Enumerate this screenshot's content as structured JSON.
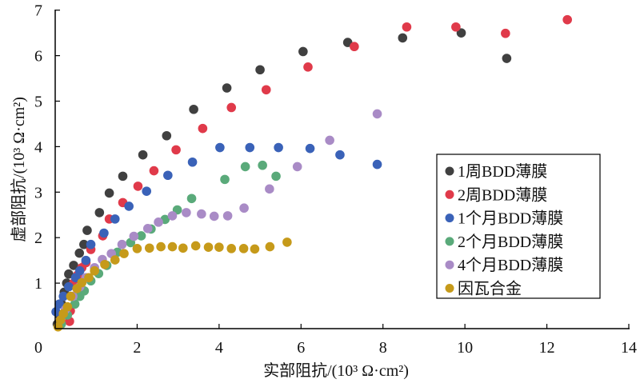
{
  "chart_data": {
    "type": "scatter",
    "title": "",
    "xlabel": "实部阻抗/(10³ Ω·cm²)",
    "ylabel": "虚部阻抗/(10³ Ω·cm²)",
    "xlim": [
      0,
      14
    ],
    "ylim": [
      0,
      7
    ],
    "xticks": [
      0,
      2,
      4,
      6,
      8,
      10,
      12,
      14
    ],
    "yticks": [
      1,
      2,
      3,
      4,
      5,
      6,
      7
    ],
    "grid": false,
    "legend_position": "right",
    "series": [
      {
        "name": "1周BDD薄膜",
        "color": "#404040",
        "x": [
          0.05,
          0.1,
          0.15,
          0.22,
          0.28,
          0.33,
          0.45,
          0.59,
          0.7,
          0.78,
          1.08,
          1.32,
          1.65,
          2.14,
          2.72,
          3.38,
          4.19,
          5.0,
          6.05,
          7.14,
          8.48,
          9.91,
          11.02
        ],
        "y": [
          0.1,
          0.3,
          0.55,
          0.8,
          1.0,
          1.2,
          1.39,
          1.66,
          1.85,
          2.16,
          2.55,
          2.98,
          3.35,
          3.82,
          4.24,
          4.82,
          5.29,
          5.69,
          6.09,
          6.29,
          6.39,
          6.5,
          5.94
        ]
      },
      {
        "name": "2周BDD薄膜",
        "color": "#e03a4a",
        "x": [
          0.35,
          0.37,
          0.45,
          0.55,
          0.65,
          0.75,
          0.87,
          1.16,
          1.32,
          1.65,
          2.02,
          2.41,
          2.95,
          3.6,
          4.3,
          5.15,
          6.17,
          7.3,
          8.58,
          9.78,
          10.99,
          12.5
        ],
        "y": [
          0.16,
          0.39,
          1.0,
          1.18,
          1.34,
          1.45,
          1.74,
          2.04,
          2.41,
          2.77,
          3.13,
          3.47,
          3.93,
          4.4,
          4.86,
          5.25,
          5.75,
          6.2,
          6.63,
          6.63,
          6.49,
          6.79
        ]
      },
      {
        "name": "1个月BDD薄膜",
        "color": "#3a62b8",
        "x": [
          0.02,
          0.1,
          0.2,
          0.33,
          0.5,
          0.6,
          0.75,
          0.87,
          1.19,
          1.46,
          1.8,
          2.23,
          2.75,
          3.35,
          4.02,
          4.75,
          5.45,
          6.22,
          6.95,
          7.86
        ],
        "y": [
          0.37,
          0.54,
          0.71,
          0.92,
          1.12,
          1.27,
          1.5,
          1.85,
          2.1,
          2.41,
          2.69,
          3.02,
          3.37,
          3.66,
          3.98,
          3.98,
          3.98,
          3.96,
          3.82,
          3.61
        ]
      },
      {
        "name": "2个月BDD薄膜",
        "color": "#5aaa7a",
        "x": [
          0.15,
          0.3,
          0.48,
          0.6,
          0.71,
          0.87,
          1.06,
          1.26,
          1.52,
          1.84,
          2.1,
          2.34,
          2.68,
          2.98,
          3.33,
          4.14,
          4.64,
          5.06,
          5.39
        ],
        "y": [
          0.1,
          0.3,
          0.54,
          0.71,
          0.83,
          1.05,
          1.21,
          1.39,
          1.68,
          1.89,
          2.04,
          2.19,
          2.4,
          2.61,
          2.86,
          3.28,
          3.56,
          3.59,
          3.35
        ]
      },
      {
        "name": "4个月BDD薄膜",
        "color": "#a98bc6",
        "x": [
          0.13,
          0.25,
          0.43,
          0.6,
          0.75,
          0.96,
          1.15,
          1.37,
          1.63,
          1.92,
          2.26,
          2.52,
          2.86,
          3.2,
          3.57,
          3.88,
          4.21,
          4.61,
          5.23,
          5.91,
          6.7,
          7.86
        ],
        "y": [
          0.19,
          0.42,
          0.71,
          0.92,
          1.12,
          1.34,
          1.52,
          1.65,
          1.85,
          2.03,
          2.2,
          2.34,
          2.48,
          2.55,
          2.52,
          2.47,
          2.48,
          2.65,
          3.07,
          3.56,
          4.14,
          4.72
        ]
      },
      {
        "name": "因瓦合金",
        "color": "#c69a1a",
        "x": [
          0.07,
          0.13,
          0.2,
          0.3,
          0.38,
          0.53,
          0.65,
          0.82,
          0.96,
          1.21,
          1.46,
          1.68,
          2.0,
          2.3,
          2.58,
          2.86,
          3.12,
          3.43,
          3.74,
          4.0,
          4.3,
          4.6,
          4.87,
          5.24,
          5.66
        ],
        "y": [
          0.04,
          0.19,
          0.33,
          0.48,
          0.71,
          0.88,
          1.01,
          1.12,
          1.27,
          1.41,
          1.51,
          1.65,
          1.76,
          1.77,
          1.8,
          1.8,
          1.77,
          1.82,
          1.79,
          1.79,
          1.76,
          1.76,
          1.75,
          1.8,
          1.9
        ]
      }
    ]
  }
}
